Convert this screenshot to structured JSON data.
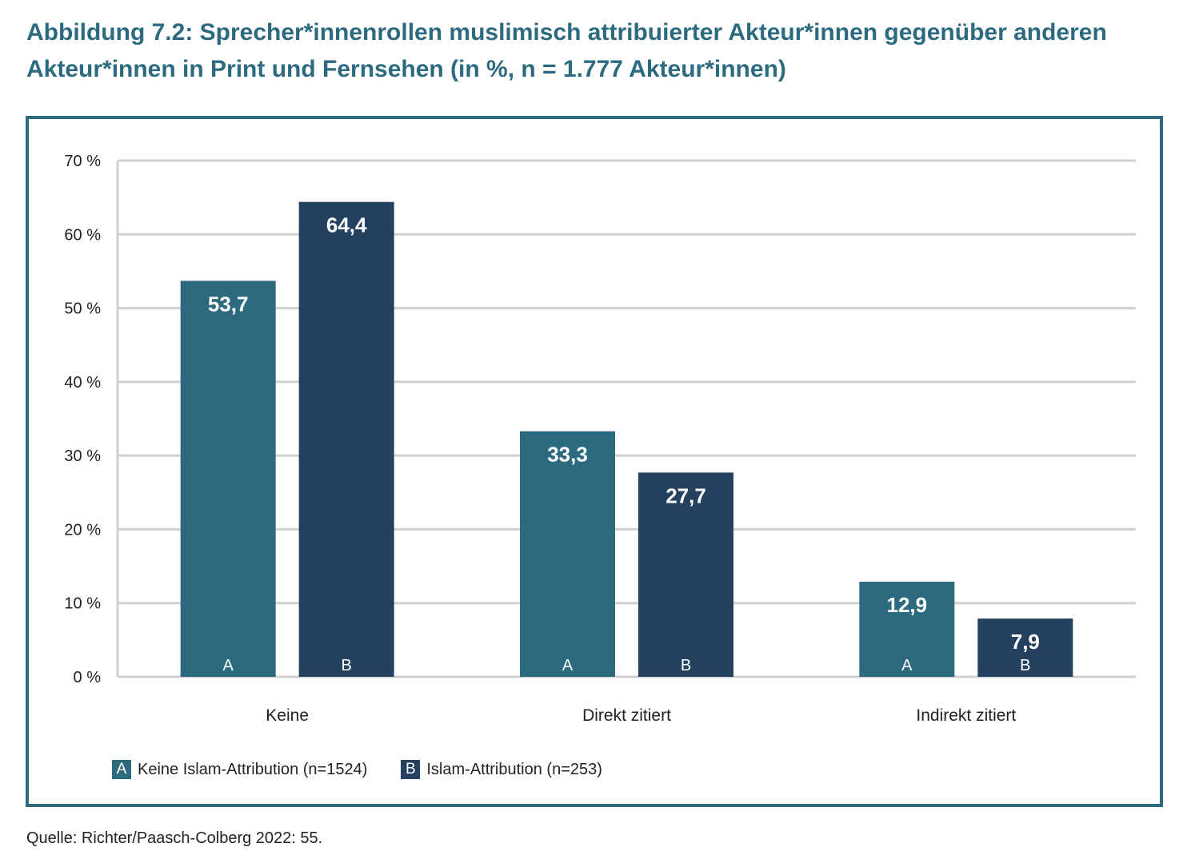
{
  "title": "Abbildung 7.2: Sprecher*innenrollen muslimisch attribuierter Akteur*innen gegenüber anderen Akteur*innen in Print und Fernsehen (in %, n = 1.777 Akteur*innen)",
  "source": "Quelle: Richter/Paasch-Colberg 2022: 55.",
  "colors": {
    "series_a": "#2c6a80",
    "series_b": "#244260",
    "frame": "#2c6a80",
    "grid": "#d0d0d0"
  },
  "legend": {
    "a_key": "A",
    "a_label": "Keine Islam-Attribution (n=1524)",
    "b_key": "B",
    "b_label": "Islam-Attribution (n=253)"
  },
  "chart_data": {
    "type": "bar",
    "categories": [
      "Keine",
      "Direkt zitiert",
      "Indirekt zitiert"
    ],
    "series": [
      {
        "name": "Keine Islam-Attribution (n=1524)",
        "key": "A",
        "values": [
          53.7,
          33.3,
          12.9
        ]
      },
      {
        "name": "Islam-Attribution (n=253)",
        "key": "B",
        "values": [
          64.4,
          27.7,
          7.9
        ]
      }
    ],
    "ylim": [
      0,
      70
    ],
    "yticks": [
      0,
      10,
      20,
      30,
      40,
      50,
      60,
      70
    ],
    "ytick_labels": [
      "0 %",
      "10 %",
      "20 %",
      "30 %",
      "40 %",
      "50 %",
      "60 %",
      "70 %"
    ],
    "data_labels": [
      [
        "53,7",
        "33,3",
        "12,9"
      ],
      [
        "64,4",
        "27,7",
        "7,9"
      ]
    ],
    "grid": true,
    "legend_position": "bottom-left"
  }
}
